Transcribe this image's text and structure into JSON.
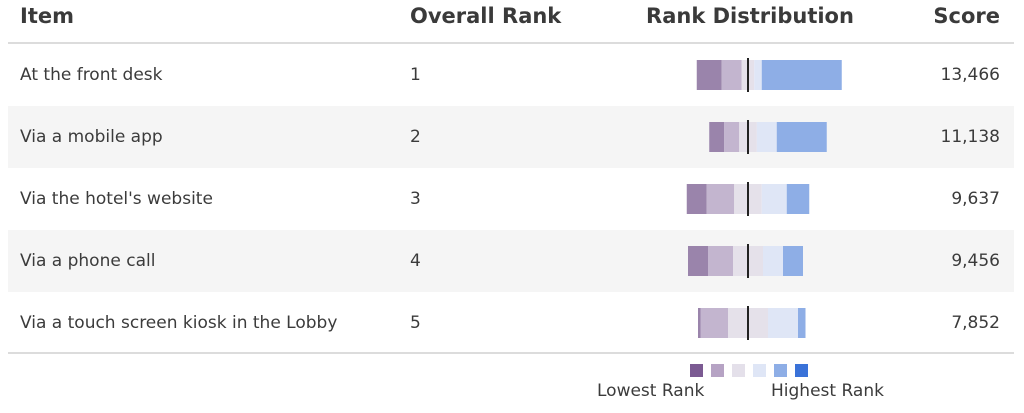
{
  "header": {
    "item": "Item",
    "rank": "Overall Rank",
    "distribution": "Rank Distribution",
    "score": "Score"
  },
  "rows": [
    {
      "item": "At the front desk",
      "rank": "1",
      "score": "13,466"
    },
    {
      "item": "Via a mobile app",
      "rank": "2",
      "score": "11,138"
    },
    {
      "item": "Via the hotel's website",
      "rank": "3",
      "score": "9,637"
    },
    {
      "item": "Via a phone call",
      "rank": "4",
      "score": "9,456"
    },
    {
      "item": "Via a touch screen kiosk in the Lobby",
      "rank": "5",
      "score": "7,852"
    }
  ],
  "legend": {
    "low_label": "Lowest Rank",
    "high_label": "Highest Rank",
    "colors": [
      "#7b5a92",
      "#b6a3c4",
      "#e4e0ea",
      "#dfe6f6",
      "#8eaee6",
      "#3a72d8"
    ]
  },
  "chart_data": {
    "type": "bar",
    "categories": [
      "At the front desk",
      "Via a mobile app",
      "Via the hotel's website",
      "Via a phone call",
      "Via a touch screen kiosk in the Lobby"
    ],
    "rank_levels": [
      "5",
      "4",
      "3",
      "2",
      "1"
    ],
    "series": [
      {
        "values": [
          10,
          6,
          8,
          8,
          1
        ]
      },
      {
        "values": [
          8,
          6,
          11,
          10,
          11
        ]
      },
      {
        "values": [
          5,
          7,
          11,
          12,
          16
        ]
      },
      {
        "values": [
          3,
          8,
          10,
          8,
          12
        ]
      },
      {
        "values": [
          32,
          20,
          9,
          8,
          3
        ]
      }
    ],
    "colors": [
      "#9a84ab",
      "#c3b5cf",
      "#e5e1ea",
      "#dfe6f6",
      "#8eaee6"
    ],
    "center": "neutral rank midpoint"
  }
}
